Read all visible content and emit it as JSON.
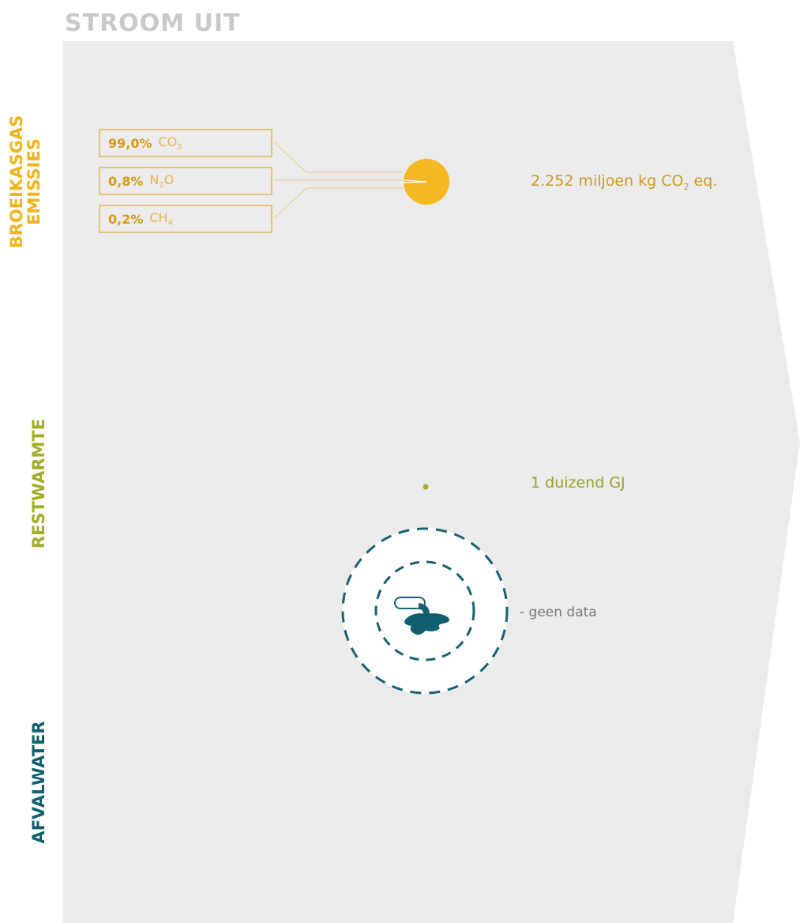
{
  "header": "STROOM UIT",
  "sections": {
    "ghg": {
      "label_line1": "BROEIKASGAS",
      "label_line2": "EMISSIES"
    },
    "heat": {
      "label": "RESTWARMTE"
    },
    "water": {
      "label": "AFVALWATER"
    }
  },
  "gases": [
    {
      "pct": "99,0%",
      "name": "CO",
      "sub": "2"
    },
    {
      "pct": "0,8%",
      "name": "N",
      "sub": "2",
      "suffix": "O"
    },
    {
      "pct": "0,2%",
      "name": "CH",
      "sub": "4"
    }
  ],
  "values": {
    "ghg_main": "2.252 miljoen kg CO",
    "ghg_sub": "2",
    "ghg_suffix": " eq.",
    "heat": "1 duizend GJ",
    "water": "- geen data"
  },
  "colors": {
    "ghg": "#f0b41e",
    "heat": "#a3ad28",
    "water": "#0f5f6e",
    "panel": "#ebebeb"
  },
  "icons": [
    "pie-chart-icon",
    "heat-dot-icon",
    "wastewater-icon"
  ]
}
